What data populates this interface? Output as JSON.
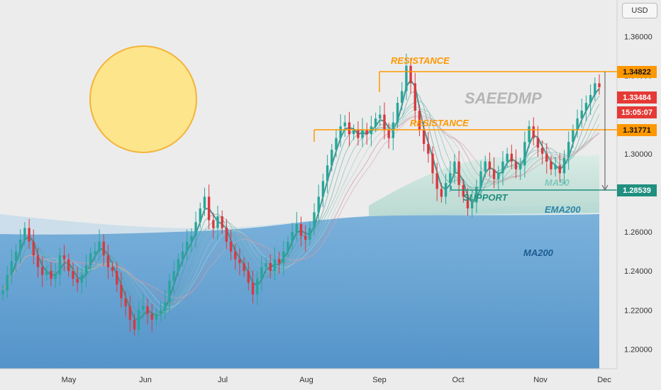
{
  "axis": {
    "currency": "USD",
    "price_ticks": [
      "1.36000",
      "1.34000",
      "1.32000",
      "1.30000",
      "1.28000",
      "1.26000",
      "1.24000",
      "1.22000",
      "1.20000"
    ],
    "months": [
      "May",
      "Jun",
      "Jul",
      "Aug",
      "Sep",
      "Oct",
      "Nov",
      "Dec"
    ]
  },
  "price_tags": {
    "resistance_top": "1.34822",
    "last_price": "1.33484",
    "countdown": "15:05:07",
    "resistance_mid": "1.31771",
    "support": "1.28539"
  },
  "annotations": {
    "resistance_top": "RESISTANCE",
    "resistance_mid": "RESISTANCE",
    "support": "SUPPORT",
    "ma50": "MA50",
    "ema200": "EMA200",
    "ma200": "MA200",
    "watermark": "SAEEDMP"
  },
  "colors": {
    "up": "#26a69a",
    "down": "#d9383f",
    "resistance": "#ff9800",
    "support": "#1f8f7f",
    "last": "#e53935",
    "ma200_fill": "#5e9fd1",
    "sun": "#fde58c"
  },
  "chart_data": {
    "type": "candlestick",
    "ylim": [
      1.19,
      1.375
    ],
    "x_categories": [
      "May",
      "Jun",
      "Jul",
      "Aug",
      "Sep",
      "Oct",
      "Nov",
      "Dec"
    ],
    "levels": [
      {
        "name": "RESISTANCE",
        "value": 1.34822
      },
      {
        "name": "RESISTANCE",
        "value": 1.31771
      },
      {
        "name": "SUPPORT",
        "value": 1.28539
      }
    ],
    "last_price": 1.33484,
    "close_path": [
      [
        1,
        1.23
      ],
      [
        2,
        1.238
      ],
      [
        3,
        1.245
      ],
      [
        4,
        1.25
      ],
      [
        5,
        1.256
      ],
      [
        6,
        1.262
      ],
      [
        7,
        1.255
      ],
      [
        8,
        1.248
      ],
      [
        9,
        1.242
      ],
      [
        10,
        1.238
      ],
      [
        11,
        1.24
      ],
      [
        12,
        1.236
      ],
      [
        13,
        1.238
      ],
      [
        14,
        1.248
      ],
      [
        15,
        1.246
      ],
      [
        16,
        1.24
      ],
      [
        17,
        1.236
      ],
      [
        18,
        1.234
      ],
      [
        19,
        1.238
      ],
      [
        20,
        1.243
      ],
      [
        21,
        1.249
      ],
      [
        22,
        1.25
      ],
      [
        23,
        1.255
      ],
      [
        24,
        1.248
      ],
      [
        25,
        1.242
      ],
      [
        26,
        1.24
      ],
      [
        27,
        1.233
      ],
      [
        28,
        1.226
      ],
      [
        29,
        1.222
      ],
      [
        30,
        1.215
      ],
      [
        31,
        1.21
      ],
      [
        32,
        1.22
      ],
      [
        33,
        1.222
      ],
      [
        34,
        1.218
      ],
      [
        35,
        1.215
      ],
      [
        36,
        1.218
      ],
      [
        37,
        1.22
      ],
      [
        38,
        1.224
      ],
      [
        39,
        1.235
      ],
      [
        40,
        1.24
      ],
      [
        41,
        1.246
      ],
      [
        42,
        1.25
      ],
      [
        43,
        1.255
      ],
      [
        44,
        1.258
      ],
      [
        45,
        1.265
      ],
      [
        46,
        1.272
      ],
      [
        47,
        1.278
      ],
      [
        48,
        1.266
      ],
      [
        49,
        1.262
      ],
      [
        50,
        1.268
      ],
      [
        51,
        1.262
      ],
      [
        52,
        1.255
      ],
      [
        53,
        1.25
      ],
      [
        54,
        1.246
      ],
      [
        55,
        1.244
      ],
      [
        56,
        1.24
      ],
      [
        57,
        1.234
      ],
      [
        58,
        1.228
      ],
      [
        59,
        1.236
      ],
      [
        60,
        1.242
      ],
      [
        61,
        1.244
      ],
      [
        62,
        1.24
      ],
      [
        63,
        1.246
      ],
      [
        64,
        1.244
      ],
      [
        65,
        1.25
      ],
      [
        66,
        1.255
      ],
      [
        67,
        1.26
      ],
      [
        68,
        1.264
      ],
      [
        69,
        1.258
      ],
      [
        70,
        1.256
      ],
      [
        71,
        1.262
      ],
      [
        72,
        1.27
      ],
      [
        73,
        1.278
      ],
      [
        74,
        1.286
      ],
      [
        75,
        1.294
      ],
      [
        76,
        1.302
      ],
      [
        77,
        1.308
      ],
      [
        78,
        1.314
      ],
      [
        79,
        1.316
      ],
      [
        80,
        1.31
      ],
      [
        81,
        1.312
      ],
      [
        82,
        1.308
      ],
      [
        83,
        1.312
      ],
      [
        84,
        1.31
      ],
      [
        85,
        1.314
      ],
      [
        86,
        1.318
      ],
      [
        87,
        1.32
      ],
      [
        88,
        1.312
      ],
      [
        89,
        1.308
      ],
      [
        90,
        1.316
      ],
      [
        91,
        1.326
      ],
      [
        92,
        1.332
      ],
      [
        93,
        1.345
      ],
      [
        94,
        1.336
      ],
      [
        95,
        1.322
      ],
      [
        96,
        1.312
      ],
      [
        97,
        1.305
      ],
      [
        98,
        1.3
      ],
      [
        99,
        1.29
      ],
      [
        100,
        1.282
      ],
      [
        101,
        1.278
      ],
      [
        102,
        1.285
      ],
      [
        103,
        1.29
      ],
      [
        104,
        1.296
      ],
      [
        105,
        1.284
      ],
      [
        106,
        1.278
      ],
      [
        107,
        1.272
      ],
      [
        108,
        1.275
      ],
      [
        109,
        1.283
      ],
      [
        110,
        1.291
      ],
      [
        111,
        1.296
      ],
      [
        112,
        1.292
      ],
      [
        113,
        1.287
      ],
      [
        114,
        1.29
      ],
      [
        115,
        1.296
      ],
      [
        116,
        1.3
      ],
      [
        117,
        1.296
      ],
      [
        118,
        1.292
      ],
      [
        119,
        1.294
      ],
      [
        120,
        1.306
      ],
      [
        121,
        1.314
      ],
      [
        122,
        1.308
      ],
      [
        123,
        1.303
      ],
      [
        124,
        1.3
      ],
      [
        125,
        1.296
      ],
      [
        126,
        1.292
      ],
      [
        127,
        1.294
      ],
      [
        128,
        1.29
      ],
      [
        129,
        1.298
      ],
      [
        130,
        1.306
      ],
      [
        131,
        1.312
      ],
      [
        132,
        1.318
      ],
      [
        133,
        1.322
      ],
      [
        134,
        1.326
      ],
      [
        135,
        1.33
      ],
      [
        136,
        1.336
      ],
      [
        137,
        1.334
      ]
    ]
  }
}
